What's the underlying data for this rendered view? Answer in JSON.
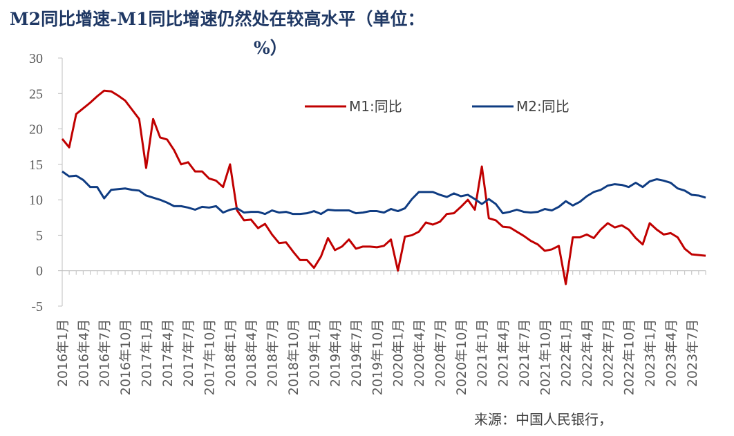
{
  "chart_data": {
    "type": "line",
    "title": "M2同比增速-M1同比增速仍然处在较高水平（单位：%）",
    "title_line1": "M2同比增速-M1同比增速仍然处在较高水平（单位：",
    "title_line2": "%）",
    "source": "来源：中国人民银行，",
    "ylim": [
      -5,
      30
    ],
    "yticks": [
      "-5",
      "0",
      "5",
      "10",
      "15",
      "20",
      "25",
      "30"
    ],
    "grid": false,
    "legend_position": "top-right",
    "x_tick_labels": [
      "2016年1月",
      "2016年4月",
      "2016年7月",
      "2016年10月",
      "2017年1月",
      "2017年4月",
      "2017年7月",
      "2017年10月",
      "2018年1月",
      "2018年4月",
      "2018年7月",
      "2018年10月",
      "2019年1月",
      "2019年4月",
      "2019年7月",
      "2019年10月",
      "2020年1月",
      "2020年4月",
      "2020年7月",
      "2020年10月",
      "2021年1月",
      "2021年4月",
      "2021年7月",
      "2021年10月",
      "2022年1月",
      "2022年4月",
      "2022年7月",
      "2022年10月",
      "2023年1月",
      "2023年4月",
      "2023年7月"
    ],
    "series": [
      {
        "name": "M1:同比",
        "color": "#c00000",
        "values": [
          18.6,
          17.4,
          22.1,
          22.9,
          23.7,
          24.6,
          25.4,
          25.3,
          24.7,
          24.0,
          22.7,
          21.4,
          14.5,
          21.4,
          18.8,
          18.5,
          17.0,
          15.0,
          15.3,
          14.0,
          14.0,
          13.0,
          12.7,
          11.8,
          15.0,
          8.5,
          7.1,
          7.2,
          6.0,
          6.6,
          5.1,
          3.9,
          4.0,
          2.7,
          1.5,
          1.5,
          0.4,
          2.0,
          4.6,
          2.9,
          3.4,
          4.4,
          3.1,
          3.4,
          3.4,
          3.3,
          3.5,
          4.4,
          0.0,
          4.8,
          5.0,
          5.5,
          6.8,
          6.5,
          6.9,
          8.0,
          8.1,
          9.0,
          10.0,
          8.6,
          14.7,
          7.4,
          7.1,
          6.2,
          6.1,
          5.5,
          4.9,
          4.2,
          3.7,
          2.8,
          3.0,
          3.5,
          -1.9,
          4.7,
          4.7,
          5.1,
          4.6,
          5.8,
          6.7,
          6.1,
          6.4,
          5.8,
          4.6,
          3.7,
          6.7,
          5.8,
          5.1,
          5.3,
          4.7,
          3.1,
          2.3,
          2.2,
          2.1
        ],
        "label_text": "M1:同比"
      },
      {
        "name": "M2:同比",
        "color": "#0f3c82",
        "values": [
          14.0,
          13.3,
          13.4,
          12.8,
          11.8,
          11.8,
          10.2,
          11.4,
          11.5,
          11.6,
          11.4,
          11.3,
          10.6,
          10.3,
          10.0,
          9.6,
          9.1,
          9.1,
          8.9,
          8.6,
          9.0,
          8.9,
          9.1,
          8.2,
          8.6,
          8.8,
          8.2,
          8.3,
          8.3,
          8.0,
          8.5,
          8.2,
          8.3,
          8.0,
          8.0,
          8.1,
          8.4,
          8.0,
          8.6,
          8.5,
          8.5,
          8.5,
          8.1,
          8.2,
          8.4,
          8.4,
          8.2,
          8.7,
          8.4,
          8.8,
          10.1,
          11.1,
          11.1,
          11.1,
          10.7,
          10.4,
          10.9,
          10.5,
          10.7,
          10.1,
          9.4,
          10.1,
          9.4,
          8.1,
          8.3,
          8.6,
          8.3,
          8.2,
          8.3,
          8.7,
          8.5,
          9.0,
          9.8,
          9.2,
          9.7,
          10.5,
          11.1,
          11.4,
          12.0,
          12.2,
          12.1,
          11.8,
          12.4,
          11.8,
          12.6,
          12.9,
          12.7,
          12.4,
          11.6,
          11.3,
          10.7,
          10.6,
          10.3
        ],
        "label_text": "M2:同比"
      }
    ]
  }
}
